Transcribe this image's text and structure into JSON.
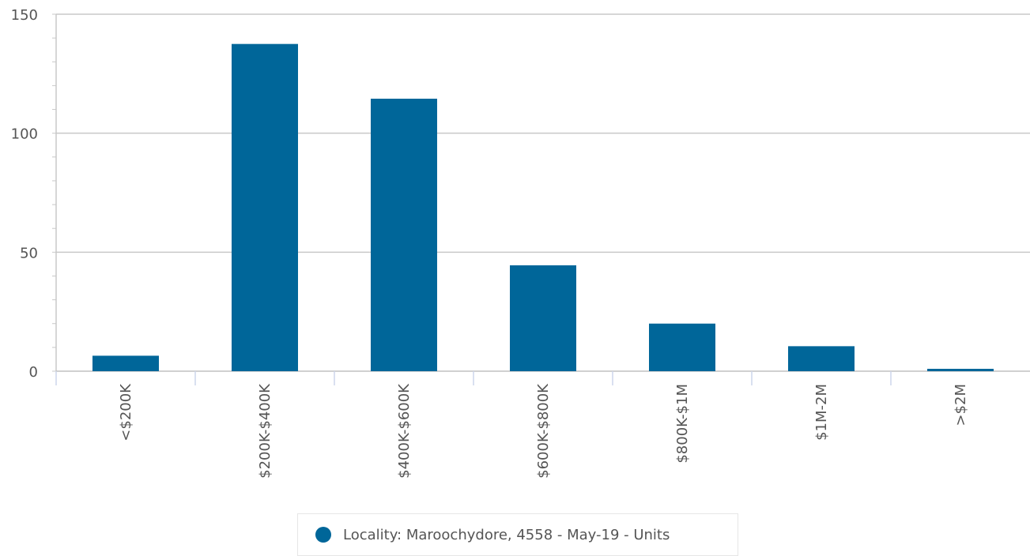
{
  "chart_data": {
    "type": "bar",
    "categories": [
      "<$200K",
      "$200K-$400K",
      "$400K-$600K",
      "$600K-$800K",
      "$800K-$1M",
      "$1M-2M",
      ">$2M"
    ],
    "series": [
      {
        "name": "Locality: Maroochydore, 4558 - May-19 - Units",
        "values": [
          6.5,
          137.5,
          114.5,
          44.5,
          20,
          10.5,
          1
        ],
        "color": "#006699"
      }
    ],
    "ylim": [
      0,
      150
    ],
    "yticks": [
      0,
      50,
      100,
      150
    ],
    "grid": true,
    "legend_position": "bottom-center"
  },
  "legend": {
    "label": "Locality: Maroochydore, 4558 - May-19 - Units"
  }
}
